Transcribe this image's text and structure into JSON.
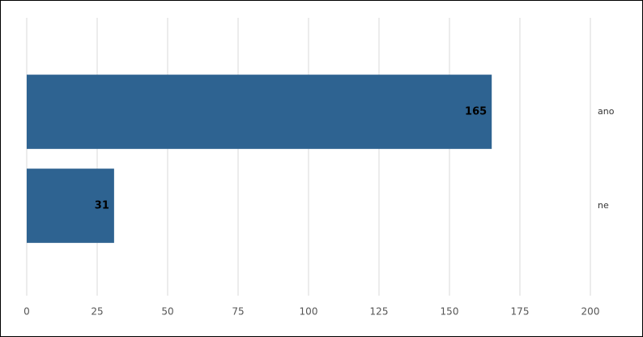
{
  "chart_data": {
    "type": "barh",
    "categories": [
      "ano",
      "ne"
    ],
    "values": [
      165,
      31
    ],
    "color": "#2e6391",
    "xlim": [
      0,
      200
    ],
    "xticks": [
      0,
      25,
      50,
      75,
      100,
      125,
      150,
      175,
      200
    ],
    "grid": true
  }
}
